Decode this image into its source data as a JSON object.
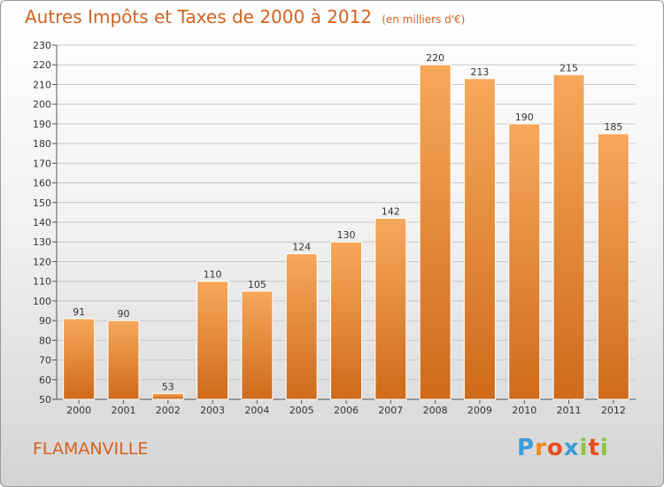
{
  "title": "Autres Impôts et Taxes de 2000 à 2012",
  "unit": "(en milliers d'€)",
  "commune": "FLAMANVILLE",
  "logo": {
    "letters": [
      "P",
      "r",
      "o",
      "x",
      "i",
      "t",
      "i"
    ],
    "colors": [
      "#3b9cd9",
      "#f08a1c",
      "#e94e1b",
      "#3b9cd9",
      "#8dc63f",
      "#e94e1b",
      "#8dc63f"
    ]
  },
  "colors": {
    "bar": "#f28f3b",
    "title": "#d4621f"
  },
  "chart_data": {
    "type": "bar",
    "title": "Autres Impôts et Taxes de 2000 à 2012",
    "xlabel": "",
    "ylabel": "",
    "categories": [
      "2000",
      "2001",
      "2002",
      "2003",
      "2004",
      "2005",
      "2006",
      "2007",
      "2008",
      "2009",
      "2010",
      "2011",
      "2012"
    ],
    "values": [
      91,
      90,
      53,
      110,
      105,
      124,
      130,
      142,
      220,
      213,
      190,
      215,
      185
    ],
    "ylim": [
      50,
      230
    ],
    "yticks": [
      50,
      60,
      70,
      80,
      90,
      100,
      110,
      120,
      130,
      140,
      150,
      160,
      170,
      180,
      190,
      200,
      210,
      220,
      230
    ],
    "grid": true,
    "legend": "none"
  }
}
